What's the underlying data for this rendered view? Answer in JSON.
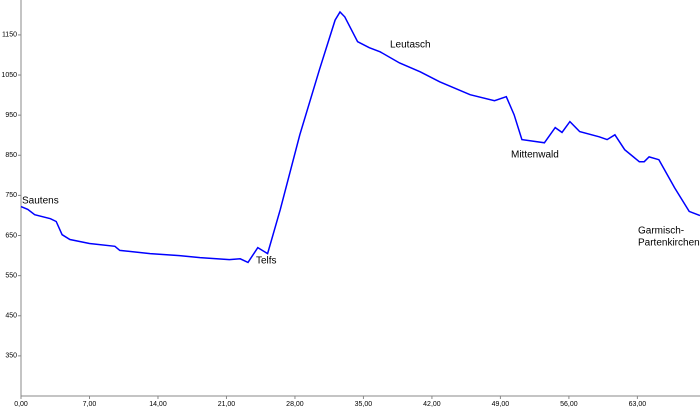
{
  "chart_data": {
    "type": "line",
    "color": "#0000ff",
    "x": [
      0,
      0.7,
      1.4,
      3.0,
      3.6,
      4.2,
      5.0,
      7.0,
      9.6,
      10.1,
      13.2,
      16.2,
      18.3,
      21.3,
      22.4,
      23.2,
      24.2,
      25.2,
      26.5,
      28.5,
      30.5,
      32.1,
      32.6,
      33.1,
      34.4,
      35.6,
      36.7,
      38.7,
      40.8,
      42.8,
      45.9,
      48.4,
      49.6,
      50.4,
      51.2,
      53.5,
      54.6,
      55.3,
      56.1,
      57.1,
      59.1,
      59.9,
      60.7,
      61.7,
      63.2,
      63.7,
      64.2,
      65.2,
      66.8,
      68.3,
      69.4
    ],
    "values": [
      722,
      715,
      702,
      692,
      685,
      652,
      640,
      630,
      623,
      613,
      605,
      600,
      595,
      590,
      592,
      583,
      620,
      605,
      715,
      901,
      1063,
      1187,
      1207,
      1195,
      1133,
      1118,
      1108,
      1080,
      1058,
      1033,
      1001,
      986,
      996,
      951,
      889,
      881,
      919,
      907,
      934,
      909,
      896,
      889,
      901,
      864,
      834,
      834,
      846,
      839,
      769,
      710,
      700
    ],
    "xlim": [
      0,
      69.4
    ],
    "ylim": [
      250,
      1237
    ],
    "xticks": [
      {
        "value": 0,
        "label": "0,00"
      },
      {
        "value": 7,
        "label": "7,00"
      },
      {
        "value": 14,
        "label": "14,00"
      },
      {
        "value": 21,
        "label": "21,00"
      },
      {
        "value": 28,
        "label": "28,00"
      },
      {
        "value": 35,
        "label": "35,00"
      },
      {
        "value": 42,
        "label": "42,00"
      },
      {
        "value": 49,
        "label": "49,00"
      },
      {
        "value": 56,
        "label": "56,00"
      },
      {
        "value": 63,
        "label": "63,00"
      }
    ],
    "yticks": [
      350,
      450,
      550,
      650,
      750,
      850,
      950,
      1050,
      1150
    ],
    "annotations": [
      [
        "Sautens"
      ],
      [
        "Telfs"
      ],
      [
        "Leutasch"
      ],
      [
        "Mittenwald"
      ],
      [
        "Garmisch-",
        "Partenkirchen"
      ]
    ]
  }
}
